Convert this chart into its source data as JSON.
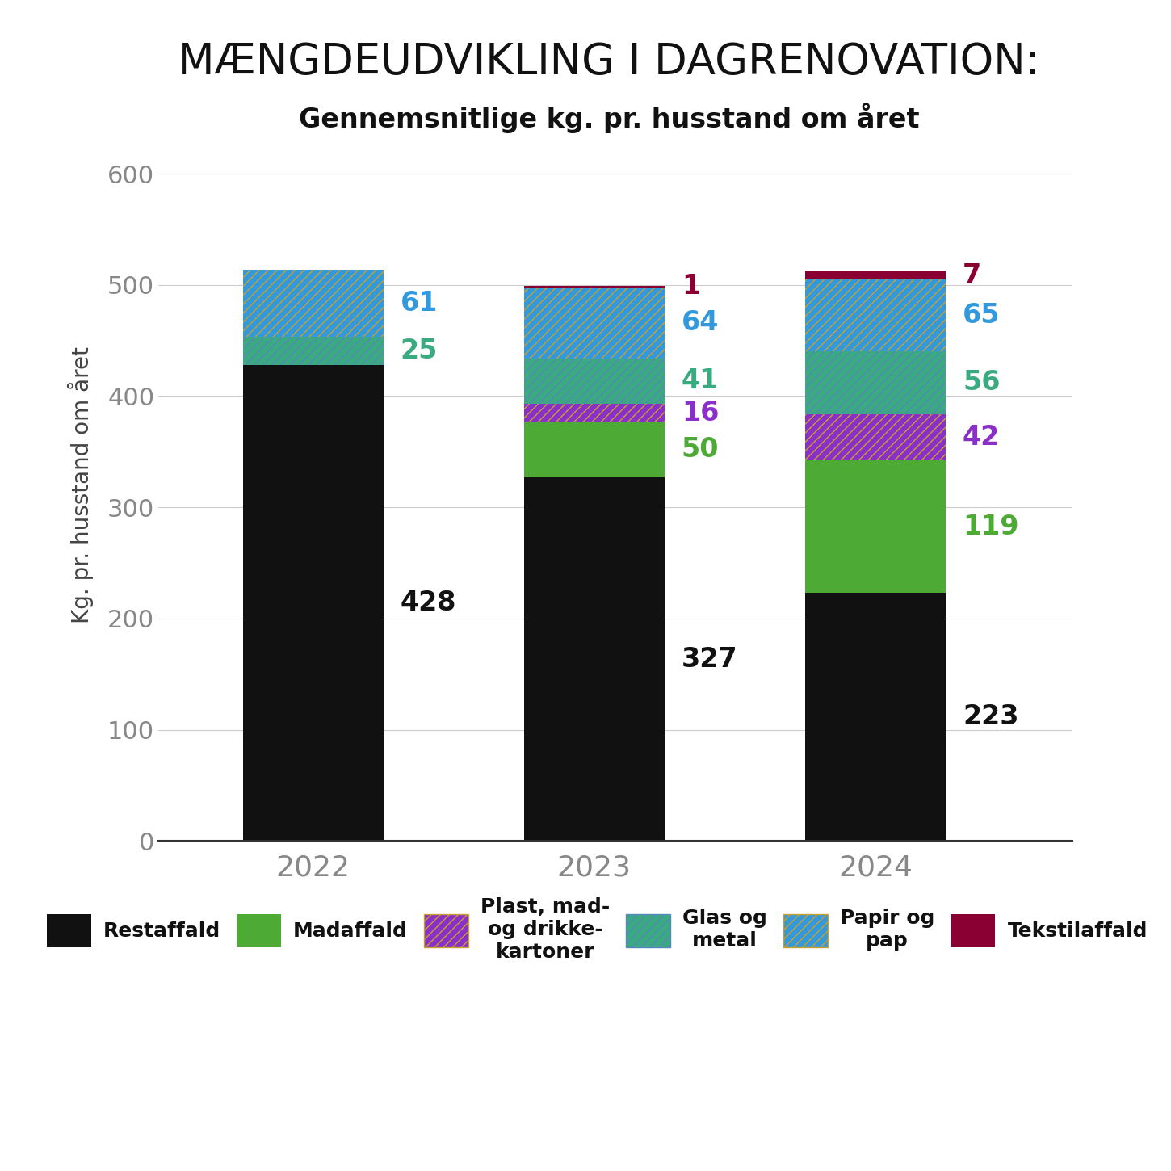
{
  "title": "MÆNGDEUDVIKLING I DAGRENOVATION:",
  "subtitle": "Gennemsnitlige kg. pr. husstand om året",
  "ylabel": "Kg. pr. husstand om året",
  "years": [
    "2022",
    "2023",
    "2024"
  ],
  "segments": [
    {
      "name": "Restaffald",
      "values": [
        428,
        327,
        223
      ],
      "color": "#111111",
      "hatch": null,
      "hatch_color": null,
      "label_color": "#111111"
    },
    {
      "name": "Madaffald",
      "values": [
        0,
        50,
        119
      ],
      "color": "#4dab35",
      "hatch": null,
      "hatch_color": null,
      "label_color": "#4dab35"
    },
    {
      "name": "Plast, mad-\nog drikke-\nkartoner",
      "values": [
        0,
        16,
        42
      ],
      "color": "#8B2FC9",
      "hatch": "///",
      "hatch_color": "#c8a030",
      "label_color": "#8B2FC9"
    },
    {
      "name": "Glas og\nmetal",
      "values": [
        25,
        41,
        56
      ],
      "color": "#3aaa80",
      "hatch": "///",
      "hatch_color": "#5588bb",
      "label_color": "#3aaa80"
    },
    {
      "name": "Papir og\npap",
      "values": [
        61,
        64,
        65
      ],
      "color": "#3399dd",
      "hatch": "///",
      "hatch_color": "#c8a030",
      "label_color": "#3399dd"
    },
    {
      "name": "Tekstilaffald",
      "values": [
        0,
        1,
        7
      ],
      "color": "#8B0032",
      "hatch": null,
      "hatch_color": null,
      "label_color": "#8B0032"
    }
  ],
  "ylim": [
    0,
    640
  ],
  "yticks": [
    0,
    100,
    200,
    300,
    400,
    500,
    600
  ],
  "bar_width": 0.5,
  "background_color": "#ffffff"
}
